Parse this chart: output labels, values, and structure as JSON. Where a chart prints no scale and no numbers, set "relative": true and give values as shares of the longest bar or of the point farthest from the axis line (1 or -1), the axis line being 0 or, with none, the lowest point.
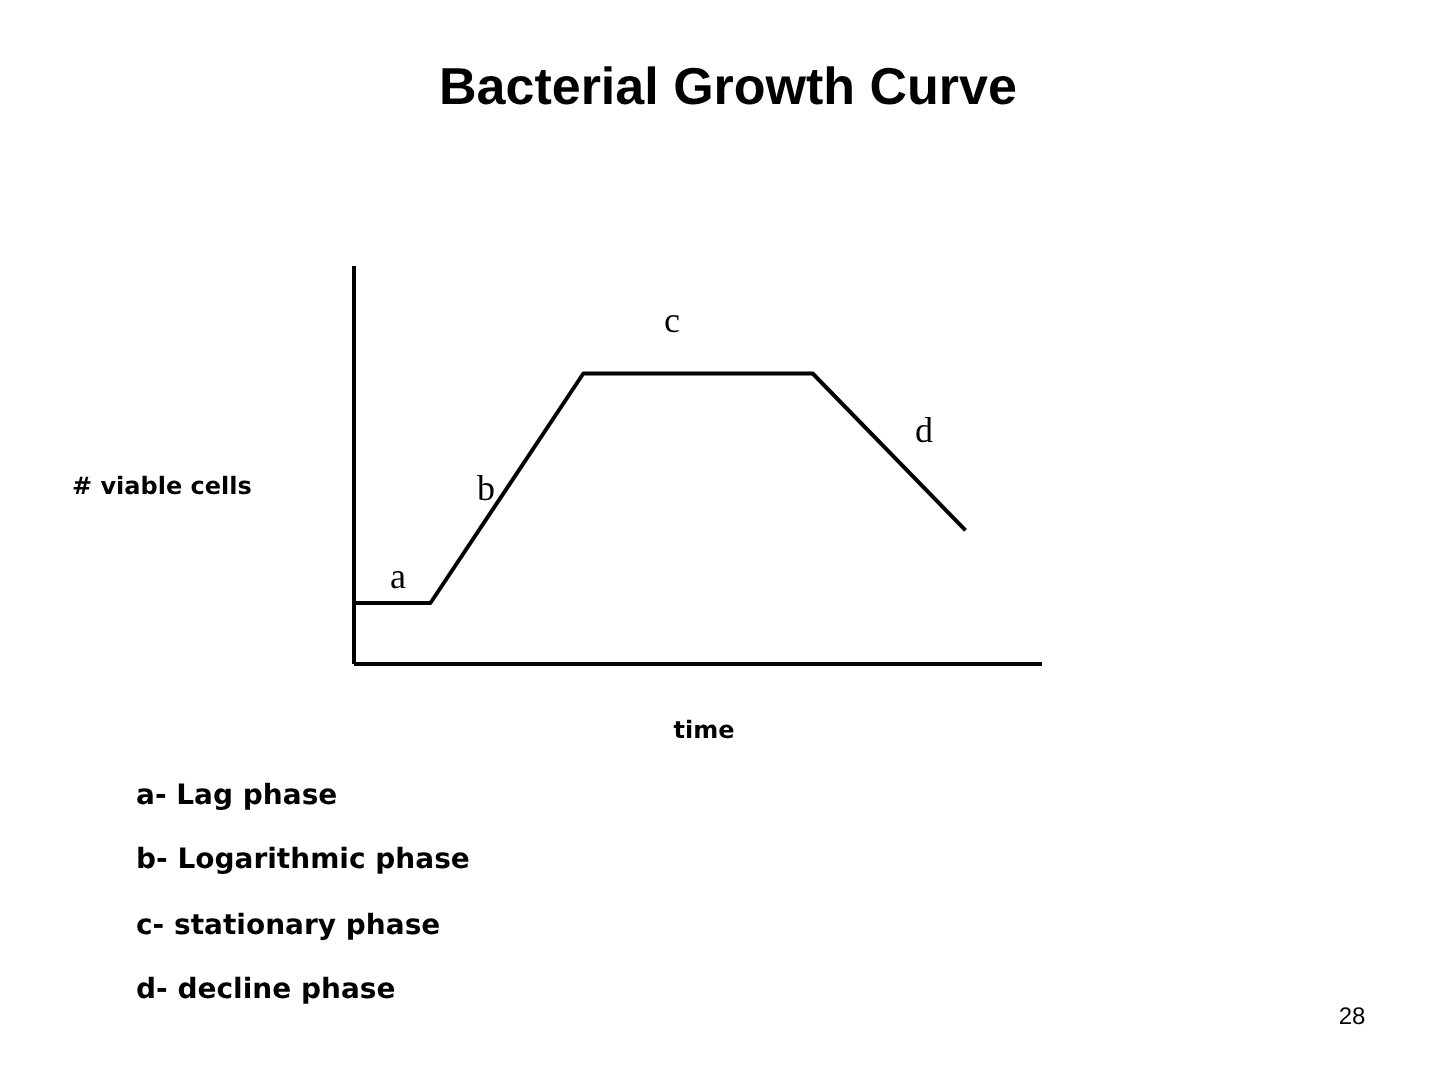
{
  "chart_data": {
    "type": "line",
    "relative": true,
    "title": "Bacterial Growth Curve",
    "xlabel": "time",
    "ylabel": "# viable cells",
    "categories": [
      null,
      null,
      null,
      null,
      null,
      null,
      null,
      null,
      null,
      null,
      null,
      null,
      null,
      null,
      null,
      null,
      null,
      null,
      null
    ],
    "series": [
      {
        "color": "#000000",
        "values": [
          0.21,
          null,
          0.21,
          null,
          null,
          null,
          1,
          null,
          null,
          null,
          null,
          null,
          1,
          null,
          null,
          null,
          0.46,
          null,
          null
        ]
      }
    ],
    "marker": "none",
    "grid": false,
    "annotations": [
      "a",
      "b",
      "c",
      "d",
      "a- Lag phase",
      "b- Logarithmic phase",
      "c- stationary phase",
      "d- decline phase",
      "28"
    ]
  }
}
